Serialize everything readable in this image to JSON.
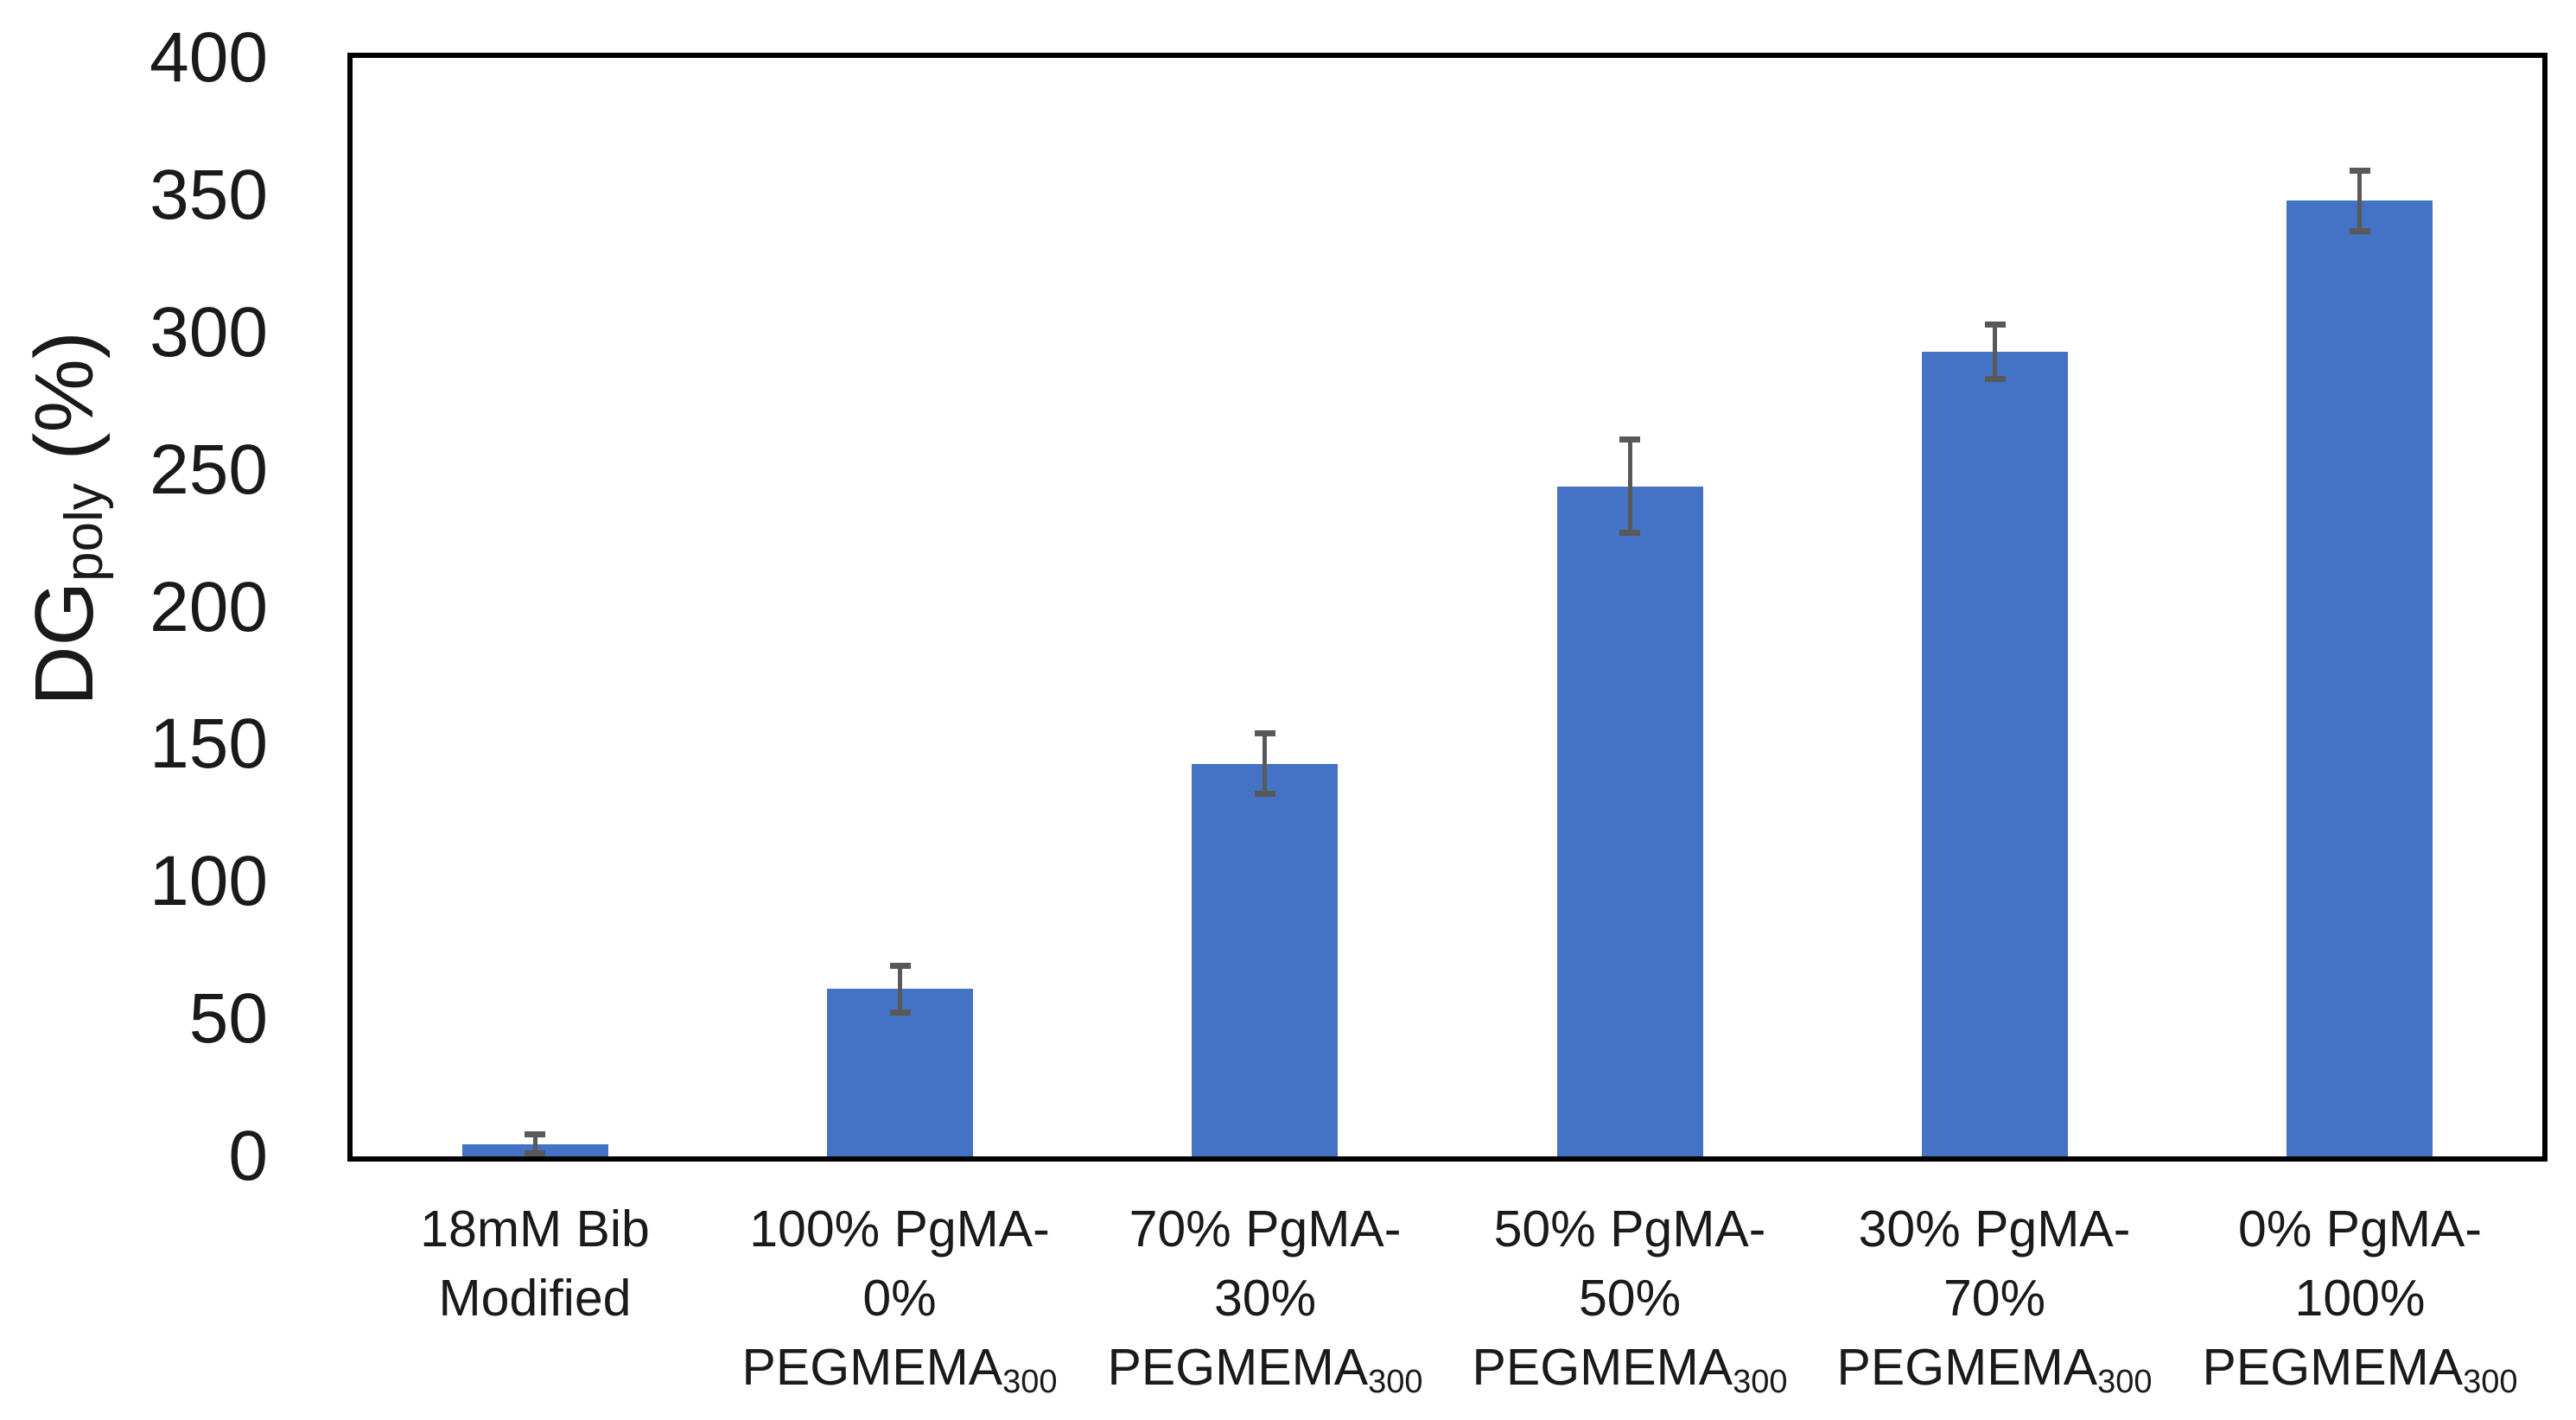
{
  "chart_data": {
    "type": "bar",
    "title": "",
    "xlabel": "",
    "ylabel": {
      "main": "DG",
      "sub": "poly",
      "unit": " (%)"
    },
    "ylim": [
      0,
      400
    ],
    "yticks": [
      0,
      50,
      100,
      150,
      200,
      250,
      300,
      350,
      400
    ],
    "grid": false,
    "legend": null,
    "bar_color": "#4472C4",
    "error_bar_color": "#595959",
    "axis_color": "#000000",
    "categories": [
      {
        "name": "18mM Bib Modified",
        "lines": [
          [
            {
              "t": "18mM Bib"
            }
          ],
          [
            {
              "t": "Modified"
            }
          ]
        ]
      },
      {
        "name": "100% PgMA-0% PEGMEMA300",
        "lines": [
          [
            {
              "t": "100% PgMA-"
            }
          ],
          [
            {
              "t": "0%"
            }
          ],
          [
            {
              "t": "PEGMEMA"
            },
            {
              "t": "300",
              "sub": true
            }
          ]
        ]
      },
      {
        "name": "70% PgMA-30% PEGMEMA300",
        "lines": [
          [
            {
              "t": "70% PgMA-"
            }
          ],
          [
            {
              "t": "30%"
            }
          ],
          [
            {
              "t": "PEGMEMA"
            },
            {
              "t": "300",
              "sub": true
            }
          ]
        ]
      },
      {
        "name": "50% PgMA-50% PEGMEMA300",
        "lines": [
          [
            {
              "t": "50% PgMA-"
            }
          ],
          [
            {
              "t": "50%"
            }
          ],
          [
            {
              "t": "PEGMEMA"
            },
            {
              "t": "300",
              "sub": true
            }
          ]
        ]
      },
      {
        "name": "30% PgMA-70% PEGMEMA300",
        "lines": [
          [
            {
              "t": "30% PgMA-"
            }
          ],
          [
            {
              "t": "70%"
            }
          ],
          [
            {
              "t": "PEGMEMA"
            },
            {
              "t": "300",
              "sub": true
            }
          ]
        ]
      },
      {
        "name": "0% PgMA-100% PEGMEMA300",
        "lines": [
          [
            {
              "t": "0% PgMA-"
            }
          ],
          [
            {
              "t": "100%"
            }
          ],
          [
            {
              "t": "PEGMEMA"
            },
            {
              "t": "300",
              "sub": true
            }
          ]
        ]
      }
    ],
    "values": [
      4.5,
      61,
      143,
      244,
      293,
      348
    ],
    "error_bars": [
      3.5,
      8.5,
      11,
      17,
      10,
      11
    ]
  }
}
